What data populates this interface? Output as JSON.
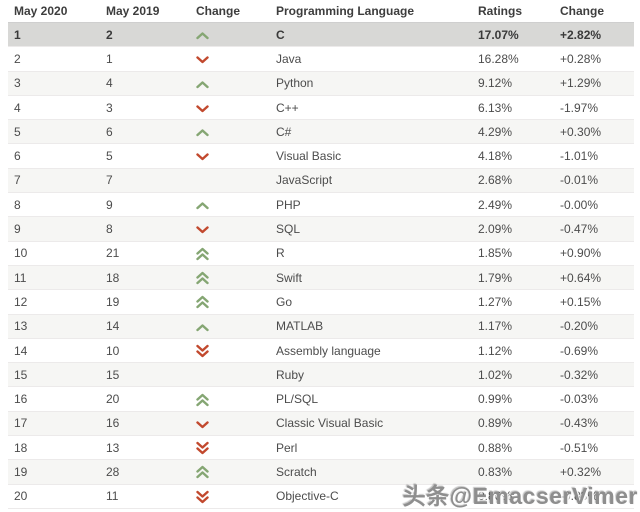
{
  "table": {
    "columns": [
      {
        "label": "May 2020"
      },
      {
        "label": "May 2019"
      },
      {
        "label": "Change"
      },
      {
        "label": "Programming Language"
      },
      {
        "label": "Ratings"
      },
      {
        "label": "Change"
      }
    ],
    "rows": [
      {
        "rank_2020": "1",
        "rank_2019": "2",
        "change": "up",
        "language": "C",
        "ratings": "17.07%",
        "change_pct": "+2.82%",
        "highlighted": true
      },
      {
        "rank_2020": "2",
        "rank_2019": "1",
        "change": "down",
        "language": "Java",
        "ratings": "16.28%",
        "change_pct": "+0.28%"
      },
      {
        "rank_2020": "3",
        "rank_2019": "4",
        "change": "up",
        "language": "Python",
        "ratings": "9.12%",
        "change_pct": "+1.29%"
      },
      {
        "rank_2020": "4",
        "rank_2019": "3",
        "change": "down",
        "language": "C++",
        "ratings": "6.13%",
        "change_pct": "-1.97%"
      },
      {
        "rank_2020": "5",
        "rank_2019": "6",
        "change": "up",
        "language": "C#",
        "ratings": "4.29%",
        "change_pct": "+0.30%"
      },
      {
        "rank_2020": "6",
        "rank_2019": "5",
        "change": "down",
        "language": "Visual Basic",
        "ratings": "4.18%",
        "change_pct": "-1.01%"
      },
      {
        "rank_2020": "7",
        "rank_2019": "7",
        "change": "none",
        "language": "JavaScript",
        "ratings": "2.68%",
        "change_pct": "-0.01%"
      },
      {
        "rank_2020": "8",
        "rank_2019": "9",
        "change": "up",
        "language": "PHP",
        "ratings": "2.49%",
        "change_pct": "-0.00%"
      },
      {
        "rank_2020": "9",
        "rank_2019": "8",
        "change": "down",
        "language": "SQL",
        "ratings": "2.09%",
        "change_pct": "-0.47%"
      },
      {
        "rank_2020": "10",
        "rank_2019": "21",
        "change": "up2",
        "language": "R",
        "ratings": "1.85%",
        "change_pct": "+0.90%"
      },
      {
        "rank_2020": "11",
        "rank_2019": "18",
        "change": "up2",
        "language": "Swift",
        "ratings": "1.79%",
        "change_pct": "+0.64%"
      },
      {
        "rank_2020": "12",
        "rank_2019": "19",
        "change": "up2",
        "language": "Go",
        "ratings": "1.27%",
        "change_pct": "+0.15%"
      },
      {
        "rank_2020": "13",
        "rank_2019": "14",
        "change": "up",
        "language": "MATLAB",
        "ratings": "1.17%",
        "change_pct": "-0.20%"
      },
      {
        "rank_2020": "14",
        "rank_2019": "10",
        "change": "down2",
        "language": "Assembly language",
        "ratings": "1.12%",
        "change_pct": "-0.69%"
      },
      {
        "rank_2020": "15",
        "rank_2019": "15",
        "change": "none",
        "language": "Ruby",
        "ratings": "1.02%",
        "change_pct": "-0.32%"
      },
      {
        "rank_2020": "16",
        "rank_2019": "20",
        "change": "up2",
        "language": "PL/SQL",
        "ratings": "0.99%",
        "change_pct": "-0.03%"
      },
      {
        "rank_2020": "17",
        "rank_2019": "16",
        "change": "down",
        "language": "Classic Visual Basic",
        "ratings": "0.89%",
        "change_pct": "-0.43%"
      },
      {
        "rank_2020": "18",
        "rank_2019": "13",
        "change": "down2",
        "language": "Perl",
        "ratings": "0.88%",
        "change_pct": "-0.51%"
      },
      {
        "rank_2020": "19",
        "rank_2019": "28",
        "change": "up2",
        "language": "Scratch",
        "ratings": "0.83%",
        "change_pct": "+0.32%"
      },
      {
        "rank_2020": "20",
        "rank_2019": "11",
        "change": "down2",
        "language": "Objective-C",
        "ratings": "0.80%",
        "change_pct": "-0.83%"
      }
    ]
  },
  "icons": {
    "up": "chevron-up-icon",
    "down": "chevron-down-icon",
    "up2": "double-chevron-up-icon",
    "down2": "double-chevron-down-icon"
  },
  "colors": {
    "arrow_up_green": "#85a673",
    "arrow_down_red": "#c2492e",
    "highlight_row": "#d8d8d6",
    "alt_row": "#f6f6f4"
  },
  "watermark": {
    "text": "头条@EmacserVimer"
  }
}
